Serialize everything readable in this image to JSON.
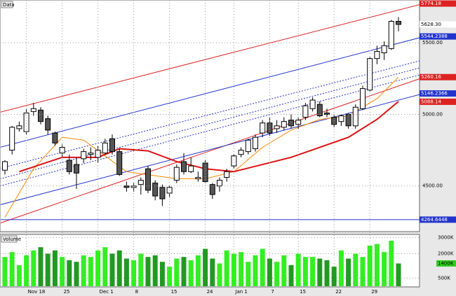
{
  "chart_data": {
    "type": "candlestick",
    "title": "Data",
    "volume_title": "Volume",
    "categories": [
      null,
      null,
      null,
      "Nov 18",
      null,
      null,
      null,
      null,
      "25",
      null,
      null,
      null,
      null,
      "Dec 1",
      null,
      null,
      null,
      null,
      "8",
      null,
      null,
      null,
      null,
      "15",
      null,
      null,
      null,
      null,
      "24",
      null,
      null,
      null,
      "Jan 1",
      null,
      null,
      null,
      null,
      "7",
      null,
      null,
      null,
      "15",
      null,
      null,
      null,
      null,
      "22",
      null,
      null,
      null,
      null,
      "29",
      null,
      null,
      null,
      null
    ],
    "open": [
      4610,
      4750,
      4900,
      4880,
      5020,
      5030,
      4970,
      4870,
      4730,
      4680,
      4650,
      4690,
      4720,
      4700,
      4730,
      4830,
      4740,
      4500,
      4490,
      4510,
      4620,
      4520,
      4490,
      4450,
      4540,
      4670,
      4600,
      4550,
      4660,
      4510,
      4500,
      4560,
      4640,
      4720,
      4740,
      4760,
      4870,
      4940,
      4900,
      4910,
      4960,
      4930,
      4980,
      5040,
      5070,
      5010,
      4980,
      4950,
      5000,
      4920,
      5040,
      5170,
      5390,
      5430,
      5460,
      5650
    ],
    "high": [
      4680,
      4920,
      4950,
      5040,
      5080,
      5050,
      4990,
      4880,
      4790,
      4720,
      4700,
      4760,
      4770,
      4780,
      4830,
      4860,
      4760,
      4530,
      4520,
      4560,
      4640,
      4540,
      4510,
      4500,
      4650,
      4730,
      4700,
      4600,
      4680,
      4520,
      4560,
      4620,
      4720,
      4770,
      4830,
      4860,
      4960,
      4980,
      4960,
      4980,
      5000,
      4980,
      5080,
      5120,
      5090,
      5040,
      5000,
      5000,
      5010,
      5070,
      5200,
      5400,
      5480,
      5510,
      5660,
      5680
    ],
    "low": [
      4580,
      4720,
      4880,
      4860,
      4990,
      4930,
      4860,
      4780,
      4700,
      4580,
      4480,
      4660,
      4680,
      4660,
      4720,
      4720,
      4570,
      4460,
      4460,
      4440,
      4450,
      4400,
      4360,
      4420,
      4520,
      4580,
      4590,
      4530,
      4520,
      4410,
      4460,
      4530,
      4620,
      4700,
      4720,
      4740,
      4840,
      4850,
      4870,
      4890,
      4900,
      4900,
      4960,
      5020,
      4980,
      4980,
      4910,
      4920,
      4900,
      4900,
      5030,
      5160,
      5350,
      5380,
      5450,
      5580
    ],
    "close": [
      4670,
      4910,
      4920,
      5010,
      5040,
      4950,
      4890,
      4800,
      4770,
      4600,
      4590,
      4740,
      4730,
      4750,
      4800,
      4740,
      4580,
      4490,
      4500,
      4540,
      4470,
      4430,
      4410,
      4490,
      4630,
      4600,
      4640,
      4560,
      4530,
      4440,
      4540,
      4600,
      4710,
      4750,
      4820,
      4840,
      4940,
      4870,
      4920,
      4950,
      4920,
      4960,
      5060,
      5100,
      4990,
      5000,
      4930,
      4990,
      4920,
      5050,
      5180,
      5390,
      5440,
      5480,
      5650,
      5628.3
    ],
    "up_color": "#ffffff",
    "down_color": "#555555",
    "volume": [
      1800,
      2100,
      1300,
      1900,
      2200,
      2400,
      2000,
      2200,
      1800,
      1600,
      1500,
      1900,
      1800,
      2200,
      2400,
      2000,
      2200,
      1700,
      1600,
      2000,
      1800,
      1900,
      1500,
      1200,
      1700,
      1800,
      1600,
      1900,
      2300,
      1700,
      1400,
      2200,
      2000,
      2100,
      1500,
      1900,
      2300,
      1700,
      1500,
      1900,
      1300,
      2000,
      1800,
      1800,
      1700,
      1600,
      1200,
      2200,
      1700,
      2000,
      1800,
      2500,
      2600,
      2100,
      2800,
      1400
    ],
    "volume_up_color": "#33ee22",
    "volume_down_color": "#229922",
    "ylim": [
      4181,
      5799
    ],
    "yticks": [
      {
        "value": 5500,
        "label": "5500.00"
      },
      {
        "value": 5000,
        "label": "5000.00"
      },
      {
        "value": 4500,
        "label": "4500.00"
      }
    ],
    "vlim": [
      0,
      3100
    ],
    "vticks": [
      {
        "value": 3000,
        "label": "3000K"
      },
      {
        "value": 2000,
        "label": "2000K"
      },
      {
        "value": 500,
        "label": "500K"
      }
    ],
    "volume_tag": {
      "value": 1400,
      "label": "1400K",
      "color": "#33cc22"
    },
    "price_tags": [
      {
        "value": 5774.18,
        "label": "5774.18",
        "color": "#dd2222"
      },
      {
        "value": 5628.3,
        "label": "5628.30",
        "color": "#ffffff"
      },
      {
        "value": 5544.2388,
        "label": "5544.2388",
        "color": "#2233cc"
      },
      {
        "value": 5260.16,
        "label": "5260.16",
        "color": "#dd2222"
      },
      {
        "value": 5146.2366,
        "label": "5146.2366",
        "color": "#2233cc"
      },
      {
        "value": 5088.14,
        "label": "5088.14",
        "color": "#dd2222"
      },
      {
        "value": 4264.6448,
        "label": "4264.6448",
        "color": "#2233cc"
      }
    ],
    "lines": [
      {
        "color": "#dd2222",
        "dash": false,
        "start": [
          -0.7,
          5015
        ],
        "end": [
          58.6,
          5775
        ]
      },
      {
        "color": "#2233cc",
        "dash": false,
        "start": [
          -0.7,
          4770
        ],
        "end": [
          58.6,
          5544
        ]
      },
      {
        "color": "#2233cc",
        "dash": true,
        "start": [
          -0.7,
          4623
        ],
        "end": [
          58.6,
          5382
        ]
      },
      {
        "color": "#2233cc",
        "dash": true,
        "start": [
          -0.7,
          4549
        ],
        "end": [
          58.6,
          5333
        ]
      },
      {
        "color": "#2233cc",
        "dash": true,
        "start": [
          -0.7,
          4500
        ],
        "end": [
          58.6,
          5284
        ]
      },
      {
        "color": "#dd2222",
        "dash": false,
        "start": [
          -0.7,
          4240
        ],
        "end": [
          58.6,
          5260
        ]
      },
      {
        "color": "#2233cc",
        "dash": false,
        "start": [
          -0.7,
          4368
        ],
        "end": [
          58.6,
          5147
        ]
      },
      {
        "color": "#2233cc",
        "dash": false,
        "start": [
          -0.7,
          4265
        ],
        "end": [
          58.6,
          4265
        ]
      }
    ],
    "overlays": [
      {
        "color": "#ff8800",
        "width": 1,
        "x": [
          0,
          4,
          8,
          11,
          17,
          24,
          28,
          32,
          36,
          40,
          44,
          48,
          52,
          55
        ],
        "values": [
          4280,
          4620,
          4840,
          4820,
          4600,
          4550,
          4550,
          4600,
          4770,
          4890,
          4965,
          4990,
          5110,
          5260
        ]
      },
      {
        "color": "#dd1111",
        "width": 2,
        "x": [
          2,
          8,
          13,
          16,
          20,
          24,
          28,
          32,
          36,
          40,
          44,
          48,
          52,
          55
        ],
        "values": [
          4600,
          4700,
          4700,
          4760,
          4745,
          4670,
          4620,
          4600,
          4650,
          4700,
          4770,
          4840,
          4965,
          5090
        ]
      }
    ]
  }
}
